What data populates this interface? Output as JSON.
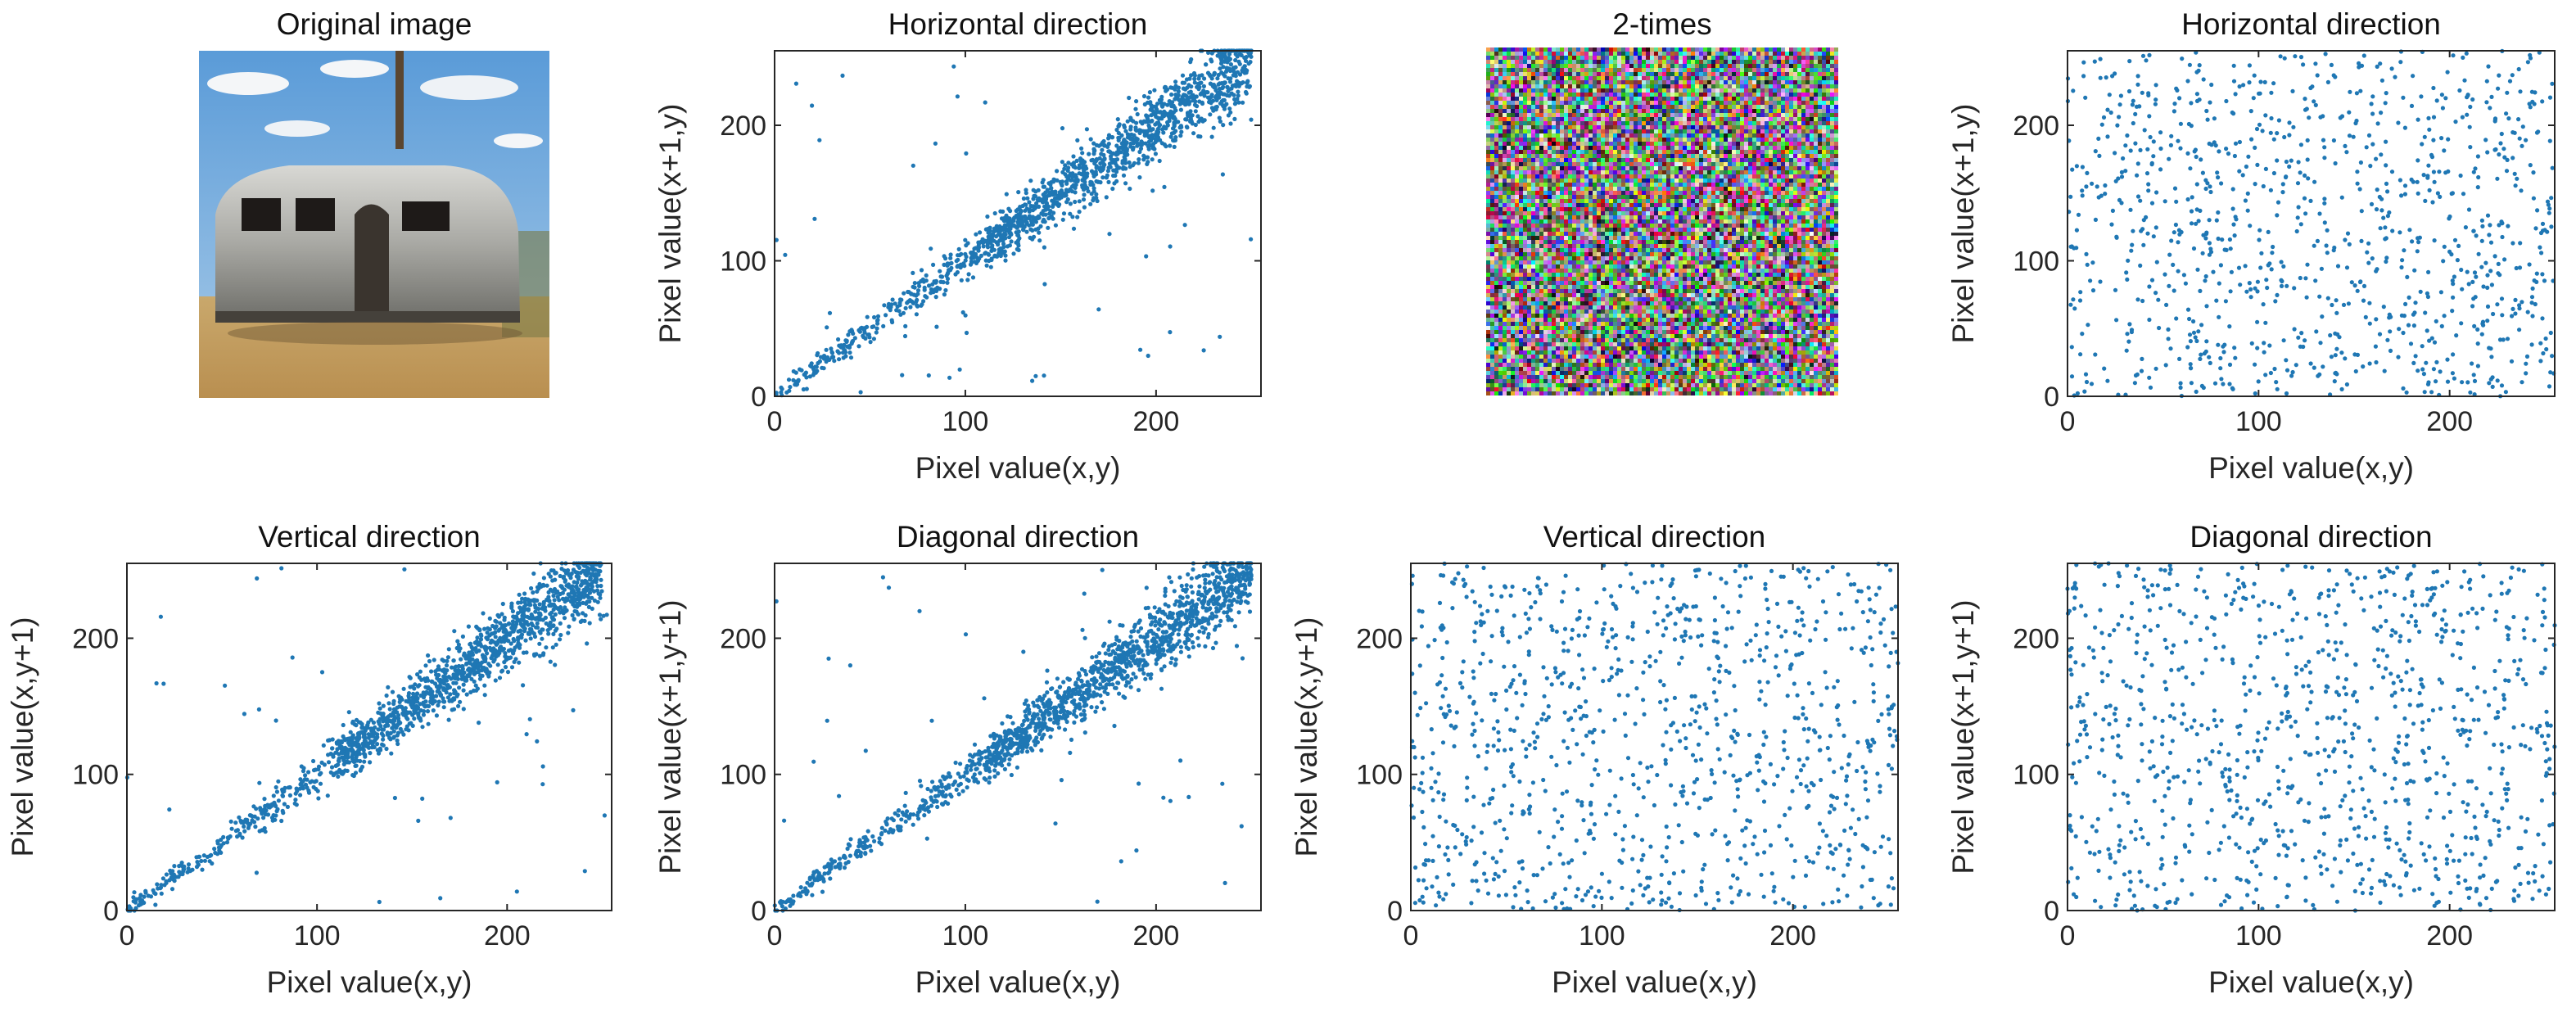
{
  "images": [
    {
      "id": "original",
      "title": "Original image"
    },
    {
      "id": "encrypted",
      "title": "2-times"
    }
  ],
  "colors": {
    "marker": "#1f77b4",
    "axis": "#262626"
  },
  "chart_data": [
    {
      "id": "orig-h",
      "type": "scatter",
      "title": "Horizontal direction",
      "xlabel": "Pixel value(x,y)",
      "ylabel": "Pixel value(x+1,y)",
      "xlim": [
        0,
        255
      ],
      "ylim": [
        0,
        255
      ],
      "xticks": [
        0,
        100,
        200
      ],
      "yticks": [
        0,
        100,
        200
      ],
      "correlation": "high",
      "n_points": 1500,
      "seed": 11
    },
    {
      "id": "orig-v",
      "type": "scatter",
      "title": "Vertical direction",
      "xlabel": "Pixel value(x,y)",
      "ylabel": "Pixel value(x,y+1)",
      "xlim": [
        0,
        255
      ],
      "ylim": [
        0,
        255
      ],
      "xticks": [
        0,
        100,
        200
      ],
      "yticks": [
        0,
        100,
        200
      ],
      "correlation": "high",
      "n_points": 1500,
      "seed": 23
    },
    {
      "id": "orig-d",
      "type": "scatter",
      "title": "Diagonal direction",
      "xlabel": "Pixel value(x,y)",
      "ylabel": "Pixel value(x+1,y+1)",
      "xlim": [
        0,
        255
      ],
      "ylim": [
        0,
        255
      ],
      "xticks": [
        0,
        100,
        200
      ],
      "yticks": [
        0,
        100,
        200
      ],
      "correlation": "high",
      "n_points": 1500,
      "seed": 37
    },
    {
      "id": "enc-h",
      "type": "scatter",
      "title": "Horizontal direction",
      "xlabel": "Pixel value(x,y)",
      "ylabel": "Pixel value(x+1,y)",
      "xlim": [
        0,
        255
      ],
      "ylim": [
        0,
        255
      ],
      "xticks": [
        0,
        100,
        200
      ],
      "yticks": [
        0,
        100,
        200
      ],
      "correlation": "none",
      "n_points": 1000,
      "seed": 41
    },
    {
      "id": "enc-v",
      "type": "scatter",
      "title": "Vertical direction",
      "xlabel": "Pixel value(x,y)",
      "ylabel": "Pixel value(x,y+1)",
      "xlim": [
        0,
        255
      ],
      "ylim": [
        0,
        255
      ],
      "xticks": [
        0,
        100,
        200
      ],
      "yticks": [
        0,
        100,
        200
      ],
      "correlation": "none",
      "n_points": 1000,
      "seed": 53
    },
    {
      "id": "enc-d",
      "type": "scatter",
      "title": "Diagonal direction",
      "xlabel": "Pixel value(x,y)",
      "ylabel": "Pixel value(x+1,y+1)",
      "xlim": [
        0,
        255
      ],
      "ylim": [
        0,
        255
      ],
      "xticks": [
        0,
        100,
        200
      ],
      "yticks": [
        0,
        100,
        200
      ],
      "correlation": "none",
      "n_points": 1000,
      "seed": 67
    }
  ]
}
